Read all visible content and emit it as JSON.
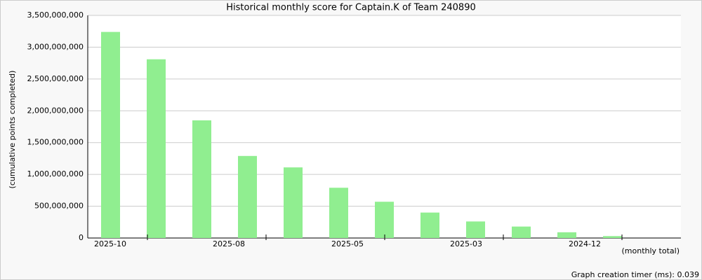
{
  "chart_data": {
    "type": "bar",
    "title": "Historical monthly score for Captain.K of Team 240890",
    "y_label": "(cumulative points completed)",
    "x_label": "(monthly total)",
    "footer": "Graph creation timer (ms): 0.039",
    "categories": [
      null,
      null,
      null,
      null,
      null,
      null,
      null,
      null,
      null,
      null,
      null,
      null
    ],
    "x_tick_labels": [
      "2025-10",
      "2025-08",
      "2025-05",
      "2025-03",
      "2024-12"
    ],
    "values": [
      3240000000,
      2810000000,
      1850000000,
      1290000000,
      1110000000,
      790000000,
      570000000,
      400000000,
      260000000,
      180000000,
      90000000,
      30000000
    ],
    "color": "#90ee90",
    "ylim": [
      0,
      3500000000
    ],
    "yticks": [
      0,
      {
        "value": 500000000,
        "label": "500,000,000"
      },
      {
        "value": 1000000000,
        "label": "1,000,000,000"
      },
      {
        "value": 1500000000,
        "label": "1,500,000,000"
      },
      {
        "value": 2000000000,
        "label": "2,000,000,000"
      },
      {
        "value": 2500000000,
        "label": "2,500,000,000"
      },
      {
        "value": 3000000000,
        "label": "3,000,000,000"
      },
      {
        "value": 3500000000,
        "label": "3,500,000,000"
      }
    ],
    "grid": true
  }
}
